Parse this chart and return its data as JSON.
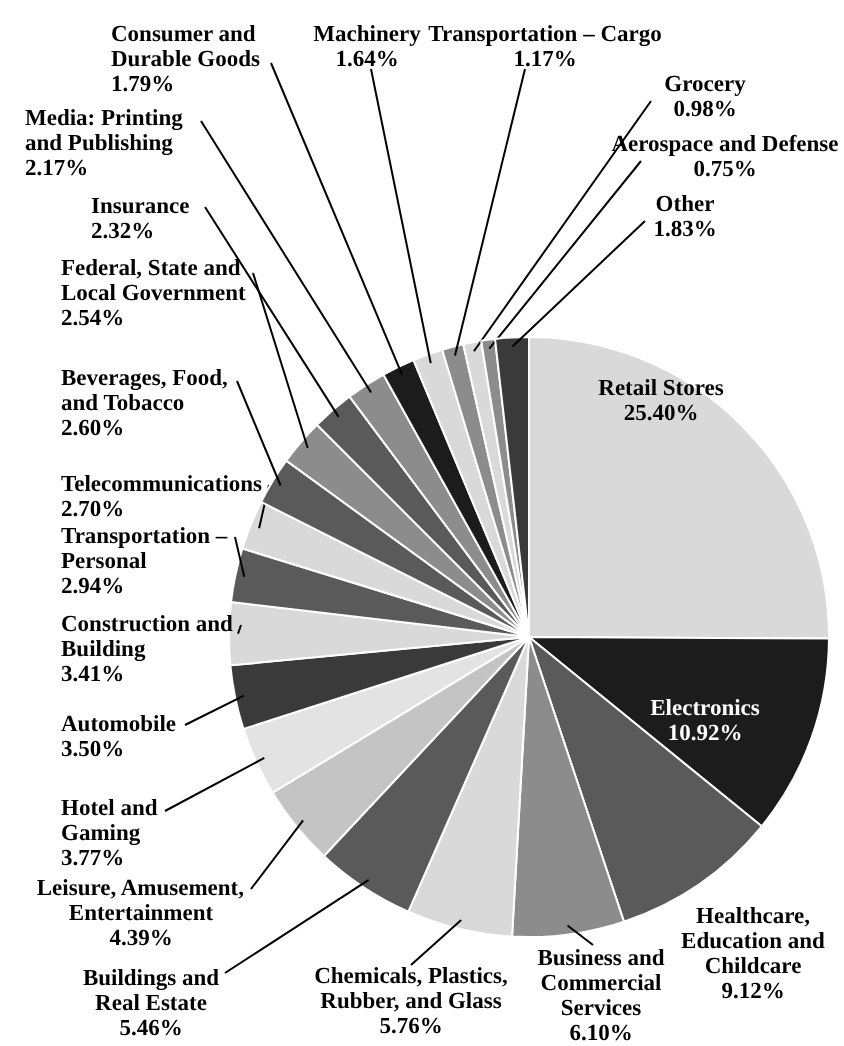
{
  "chart_data": {
    "type": "pie",
    "categories": [
      "Retail Stores",
      "Electronics",
      "Healthcare, Education and Childcare",
      "Business and Commercial Services",
      "Chemicals, Plastics, Rubber, and Glass",
      "Buildings and Real Estate",
      "Leisure, Amusement, Entertainment",
      "Hotel and Gaming",
      "Automobile",
      "Construction and Building",
      "Transportation – Personal",
      "Telecommunications",
      "Beverages, Food, and Tobacco",
      "Federal, State and Local Government",
      "Insurance",
      "Media: Printing and Publishing",
      "Consumer and Durable Goods",
      "Machinery",
      "Transportation – Cargo",
      "Grocery",
      "Aerospace and Defense",
      "Other"
    ],
    "values": [
      25.4,
      10.92,
      9.12,
      6.1,
      5.76,
      5.46,
      4.39,
      3.77,
      3.5,
      3.41,
      2.94,
      2.7,
      2.6,
      2.54,
      2.32,
      2.17,
      1.79,
      1.64,
      1.17,
      0.98,
      0.75,
      1.83
    ],
    "value_labels": [
      "25.40%",
      "10.92%",
      "9.12%",
      "6.10%",
      "5.76%",
      "5.46%",
      "4.39%",
      "3.77%",
      "3.50%",
      "3.41%",
      "2.94%",
      "2.70%",
      "2.60%",
      "2.54%",
      "2.32%",
      "2.17%",
      "1.79%",
      "1.64%",
      "1.17%",
      "0.98%",
      "0.75%",
      "1.83%"
    ],
    "colors": [
      "#d9d9d9",
      "#1c1c1c",
      "#5a5a5a",
      "#8c8c8c",
      "#d9d9d9",
      "#5a5a5a",
      "#c4c4c4",
      "#e3e3e3",
      "#3a3a3a",
      "#d9d9d9",
      "#5a5a5a",
      "#d9d9d9",
      "#5a5a5a",
      "#8c8c8c",
      "#5a5a5a",
      "#8c8c8c",
      "#1c1c1c",
      "#d9d9d9",
      "#8c8c8c",
      "#d9d9d9",
      "#8c8c8c",
      "#3a3a3a"
    ]
  }
}
